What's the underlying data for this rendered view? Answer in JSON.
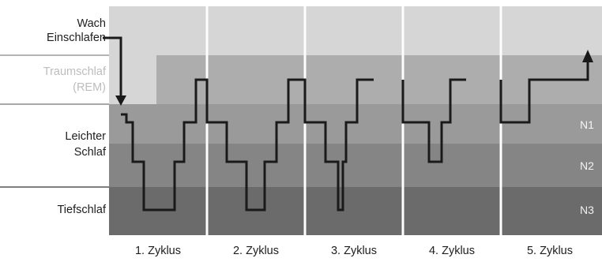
{
  "rows": {
    "wach": "Wach",
    "einschlafen": "Einschlafen",
    "traumschlaf": "Traumschlaf",
    "rem": "(REM)",
    "leichter": "Leichter",
    "schlaf": "Schlaf",
    "tiefschlaf": "Tiefschlaf"
  },
  "stage_codes": [
    "N1",
    "N2",
    "N3"
  ],
  "cycles": [
    "1. Zyklus",
    "2. Zyklus",
    "3. Zyklus",
    "4. Zyklus",
    "5. Zyklus"
  ],
  "colors": {
    "wach_band": "#d6d6d6",
    "rem_band": "#adadad",
    "n1_band": "#9a9a9a",
    "n2_band": "#858585",
    "n3_band": "#6b6b6b",
    "hypnogram_line": "#1a1a1a",
    "separator": "#ffffff",
    "rule_line": "#8c8c8c"
  }
}
